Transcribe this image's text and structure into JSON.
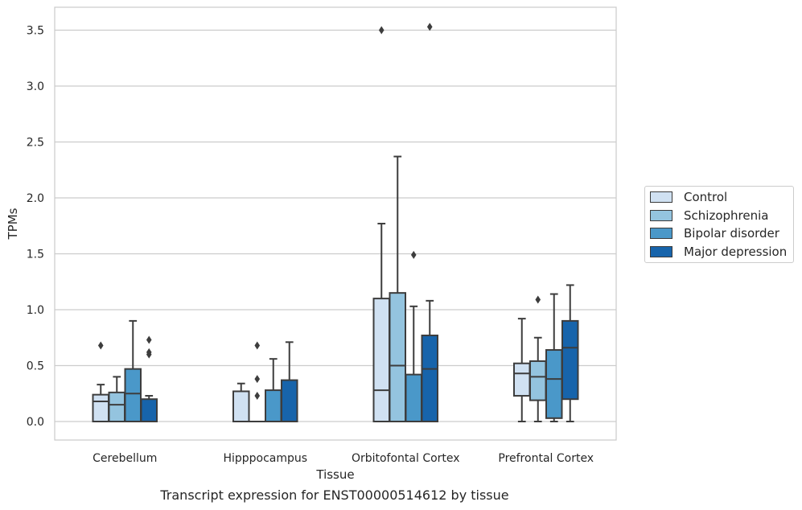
{
  "chart_data": {
    "type": "boxplot",
    "title": "Transcript expression for ENST00000514612 by tissue",
    "xlabel": "Tissue",
    "ylabel": "TPMs",
    "ylim": [
      -0.17,
      3.71
    ],
    "yticks": [
      "0.0",
      "0.5",
      "1.0",
      "1.5",
      "2.0",
      "2.5",
      "3.0",
      "3.5"
    ],
    "categories": [
      "Cerebellum",
      "Hipppocampus",
      "Orbitofontal Cortex",
      "Prefrontal Cortex"
    ],
    "grid": true,
    "legend_position": "right",
    "series": [
      {
        "name": "Control",
        "color": "#d0e1f2",
        "boxes": [
          {
            "q1": 0.0,
            "median": 0.18,
            "q3": 0.24,
            "whisker_low": 0.0,
            "whisker_high": 0.33,
            "outliers": [
              0.68
            ]
          },
          {
            "q1": 0.0,
            "median": 0.0,
            "q3": 0.27,
            "whisker_low": 0.0,
            "whisker_high": 0.34,
            "outliers": []
          },
          {
            "q1": 0.0,
            "median": 0.28,
            "q3": 1.1,
            "whisker_low": 0.0,
            "whisker_high": 1.77,
            "outliers": [
              3.5
            ]
          },
          {
            "q1": 0.23,
            "median": 0.43,
            "q3": 0.52,
            "whisker_low": 0.0,
            "whisker_high": 0.92,
            "outliers": []
          }
        ]
      },
      {
        "name": "Schizophrenia",
        "color": "#94c4df",
        "boxes": [
          {
            "q1": 0.0,
            "median": 0.15,
            "q3": 0.26,
            "whisker_low": 0.0,
            "whisker_high": 0.4,
            "outliers": []
          },
          {
            "q1": 0.0,
            "median": 0.0,
            "q3": 0.0,
            "whisker_low": 0.0,
            "whisker_high": 0.0,
            "outliers": [
              0.68,
              0.38,
              0.23
            ]
          },
          {
            "q1": 0.0,
            "median": 0.5,
            "q3": 1.15,
            "whisker_low": 0.0,
            "whisker_high": 2.37,
            "outliers": []
          },
          {
            "q1": 0.19,
            "median": 0.4,
            "q3": 0.54,
            "whisker_low": 0.0,
            "whisker_high": 0.75,
            "outliers": [
              1.09
            ]
          }
        ]
      },
      {
        "name": "Bipolar disorder",
        "color": "#4a98c9",
        "boxes": [
          {
            "q1": 0.0,
            "median": 0.25,
            "q3": 0.47,
            "whisker_low": 0.0,
            "whisker_high": 0.9,
            "outliers": []
          },
          {
            "q1": 0.0,
            "median": 0.0,
            "q3": 0.28,
            "whisker_low": 0.0,
            "whisker_high": 0.56,
            "outliers": []
          },
          {
            "q1": 0.0,
            "median": 0.0,
            "q3": 0.42,
            "whisker_low": 0.0,
            "whisker_high": 1.03,
            "outliers": [
              1.49
            ]
          },
          {
            "q1": 0.03,
            "median": 0.38,
            "q3": 0.64,
            "whisker_low": 0.0,
            "whisker_high": 1.14,
            "outliers": []
          }
        ]
      },
      {
        "name": "Major depression",
        "color": "#1764ab",
        "boxes": [
          {
            "q1": 0.0,
            "median": 0.0,
            "q3": 0.2,
            "whisker_low": 0.0,
            "whisker_high": 0.23,
            "outliers": [
              0.73,
              0.62,
              0.6
            ]
          },
          {
            "q1": 0.0,
            "median": 0.0,
            "q3": 0.37,
            "whisker_low": 0.0,
            "whisker_high": 0.71,
            "outliers": []
          },
          {
            "q1": 0.0,
            "median": 0.47,
            "q3": 0.77,
            "whisker_low": 0.0,
            "whisker_high": 1.08,
            "outliers": [
              3.53
            ]
          },
          {
            "q1": 0.2,
            "median": 0.66,
            "q3": 0.9,
            "whisker_low": 0.0,
            "whisker_high": 1.22,
            "outliers": []
          }
        ]
      }
    ]
  }
}
